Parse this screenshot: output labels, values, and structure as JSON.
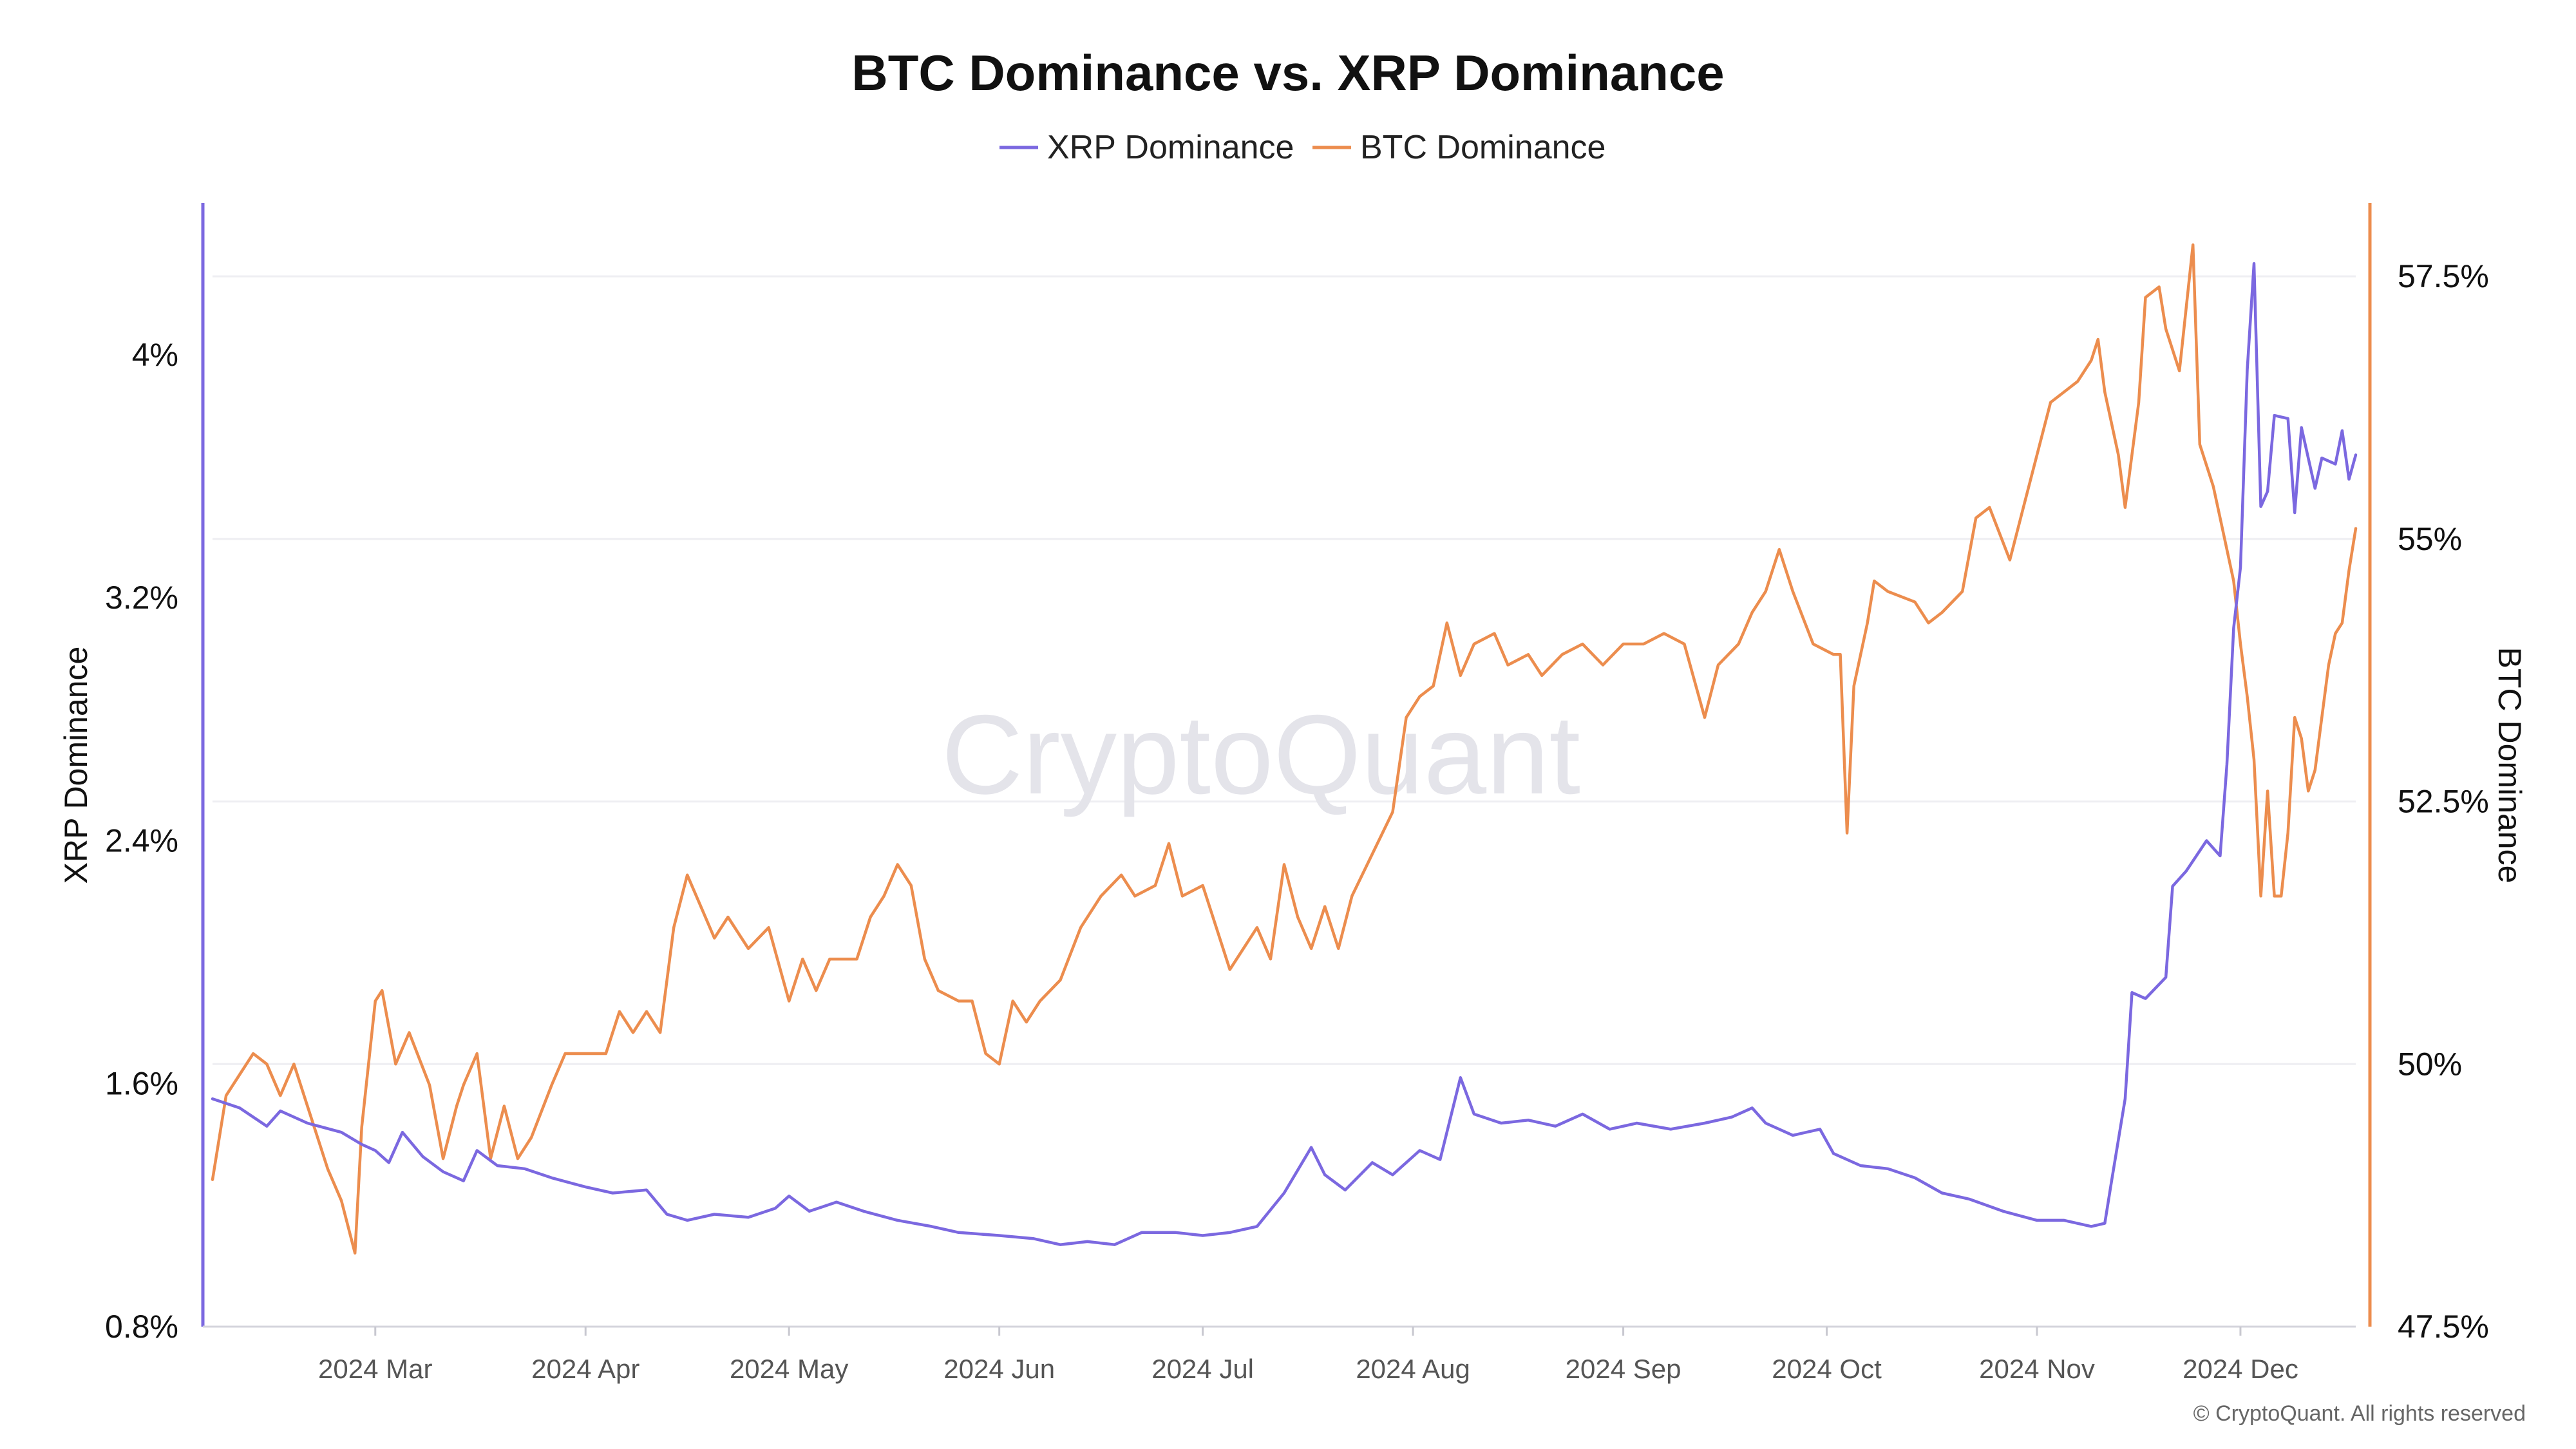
{
  "colors": {
    "xrp": "#7b68e0",
    "btc": "#ec8d4e",
    "grid": "#eeeef2",
    "x_axis": "#d4d4dc"
  },
  "watermark": "CryptoQuant",
  "copyright": "© CryptoQuant. All rights reserved",
  "chart_data": {
    "type": "line",
    "title": "BTC Dominance vs. XRP Dominance",
    "legend": [
      "XRP Dominance",
      "BTC Dominance"
    ],
    "legend_position": "top-center",
    "x_axis": {
      "start": "2024-02-06",
      "end": "2024-12-18",
      "ticks": [
        {
          "date": "2024-03-01",
          "label": "2024 Mar"
        },
        {
          "date": "2024-04-01",
          "label": "2024 Apr"
        },
        {
          "date": "2024-05-01",
          "label": "2024 May"
        },
        {
          "date": "2024-06-01",
          "label": "2024 Jun"
        },
        {
          "date": "2024-07-01",
          "label": "2024 Jul"
        },
        {
          "date": "2024-08-01",
          "label": "2024 Aug"
        },
        {
          "date": "2024-09-01",
          "label": "2024 Sep"
        },
        {
          "date": "2024-10-01",
          "label": "2024 Oct"
        },
        {
          "date": "2024-11-01",
          "label": "2024 Nov"
        },
        {
          "date": "2024-12-01",
          "label": "2024 Dec"
        }
      ]
    },
    "y_left": {
      "label": "XRP Dominance",
      "range": [
        0.8,
        4.5
      ],
      "ticks": [
        0.8,
        1.6,
        2.4,
        3.2,
        4.0
      ],
      "tick_labels": [
        "0.8%",
        "1.6%",
        "2.4%",
        "3.2%",
        "4%"
      ]
    },
    "y_right": {
      "label": "BTC Dominance",
      "range": [
        47.5,
        58.2
      ],
      "ticks": [
        47.5,
        50.0,
        52.5,
        55.0,
        57.5
      ],
      "tick_labels": [
        "47.5%",
        "50%",
        "52.5%",
        "55%",
        "57.5%"
      ]
    },
    "series": [
      {
        "name": "XRP Dominance",
        "axis": "left",
        "points": [
          [
            "2024-02-06",
            1.55
          ],
          [
            "2024-02-10",
            1.52
          ],
          [
            "2024-02-14",
            1.46
          ],
          [
            "2024-02-16",
            1.51
          ],
          [
            "2024-02-20",
            1.47
          ],
          [
            "2024-02-25",
            1.44
          ],
          [
            "2024-02-28",
            1.4
          ],
          [
            "2024-03-01",
            1.38
          ],
          [
            "2024-03-03",
            1.34
          ],
          [
            "2024-03-05",
            1.44
          ],
          [
            "2024-03-08",
            1.36
          ],
          [
            "2024-03-11",
            1.31
          ],
          [
            "2024-03-14",
            1.28
          ],
          [
            "2024-03-16",
            1.38
          ],
          [
            "2024-03-19",
            1.33
          ],
          [
            "2024-03-23",
            1.32
          ],
          [
            "2024-03-27",
            1.29
          ],
          [
            "2024-04-01",
            1.26
          ],
          [
            "2024-04-05",
            1.24
          ],
          [
            "2024-04-10",
            1.25
          ],
          [
            "2024-04-13",
            1.17
          ],
          [
            "2024-04-16",
            1.15
          ],
          [
            "2024-04-20",
            1.17
          ],
          [
            "2024-04-25",
            1.16
          ],
          [
            "2024-04-29",
            1.19
          ],
          [
            "2024-05-01",
            1.23
          ],
          [
            "2024-05-04",
            1.18
          ],
          [
            "2024-05-08",
            1.21
          ],
          [
            "2024-05-12",
            1.18
          ],
          [
            "2024-05-17",
            1.15
          ],
          [
            "2024-05-22",
            1.13
          ],
          [
            "2024-05-26",
            1.11
          ],
          [
            "2024-06-01",
            1.1
          ],
          [
            "2024-06-06",
            1.09
          ],
          [
            "2024-06-10",
            1.07
          ],
          [
            "2024-06-14",
            1.08
          ],
          [
            "2024-06-18",
            1.07
          ],
          [
            "2024-06-22",
            1.11
          ],
          [
            "2024-06-27",
            1.11
          ],
          [
            "2024-07-01",
            1.1
          ],
          [
            "2024-07-05",
            1.11
          ],
          [
            "2024-07-09",
            1.13
          ],
          [
            "2024-07-13",
            1.24
          ],
          [
            "2024-07-17",
            1.39
          ],
          [
            "2024-07-19",
            1.3
          ],
          [
            "2024-07-22",
            1.25
          ],
          [
            "2024-07-26",
            1.34
          ],
          [
            "2024-07-29",
            1.3
          ],
          [
            "2024-08-02",
            1.38
          ],
          [
            "2024-08-05",
            1.35
          ],
          [
            "2024-08-08",
            1.62
          ],
          [
            "2024-08-10",
            1.5
          ],
          [
            "2024-08-14",
            1.47
          ],
          [
            "2024-08-18",
            1.48
          ],
          [
            "2024-08-22",
            1.46
          ],
          [
            "2024-08-26",
            1.5
          ],
          [
            "2024-08-30",
            1.45
          ],
          [
            "2024-09-03",
            1.47
          ],
          [
            "2024-09-08",
            1.45
          ],
          [
            "2024-09-13",
            1.47
          ],
          [
            "2024-09-17",
            1.49
          ],
          [
            "2024-09-20",
            1.52
          ],
          [
            "2024-09-22",
            1.47
          ],
          [
            "2024-09-26",
            1.43
          ],
          [
            "2024-09-30",
            1.45
          ],
          [
            "2024-10-02",
            1.37
          ],
          [
            "2024-10-06",
            1.33
          ],
          [
            "2024-10-10",
            1.32
          ],
          [
            "2024-10-14",
            1.29
          ],
          [
            "2024-10-18",
            1.24
          ],
          [
            "2024-10-22",
            1.22
          ],
          [
            "2024-10-27",
            1.18
          ],
          [
            "2024-11-01",
            1.15
          ],
          [
            "2024-11-05",
            1.15
          ],
          [
            "2024-11-09",
            1.13
          ],
          [
            "2024-11-11",
            1.14
          ],
          [
            "2024-11-12",
            1.28
          ],
          [
            "2024-11-14",
            1.55
          ],
          [
            "2024-11-15",
            1.9
          ],
          [
            "2024-11-17",
            1.88
          ],
          [
            "2024-11-20",
            1.95
          ],
          [
            "2024-11-21",
            2.25
          ],
          [
            "2024-11-23",
            2.3
          ],
          [
            "2024-11-26",
            2.4
          ],
          [
            "2024-11-28",
            2.35
          ],
          [
            "2024-11-29",
            2.65
          ],
          [
            "2024-11-30",
            3.1
          ],
          [
            "2024-12-01",
            3.3
          ],
          [
            "2024-12-02",
            3.95
          ],
          [
            "2024-12-03",
            4.3
          ],
          [
            "2024-12-04",
            3.5
          ],
          [
            "2024-12-05",
            3.55
          ],
          [
            "2024-12-06",
            3.8
          ],
          [
            "2024-12-08",
            3.79
          ],
          [
            "2024-12-09",
            3.48
          ],
          [
            "2024-12-10",
            3.76
          ],
          [
            "2024-12-12",
            3.56
          ],
          [
            "2024-12-13",
            3.66
          ],
          [
            "2024-12-15",
            3.64
          ],
          [
            "2024-12-16",
            3.75
          ],
          [
            "2024-12-17",
            3.59
          ],
          [
            "2024-12-18",
            3.67
          ]
        ]
      },
      {
        "name": "BTC Dominance",
        "axis": "right",
        "points": [
          [
            "2024-02-06",
            48.9
          ],
          [
            "2024-02-08",
            49.7
          ],
          [
            "2024-02-10",
            49.9
          ],
          [
            "2024-02-12",
            50.1
          ],
          [
            "2024-02-14",
            50.0
          ],
          [
            "2024-02-16",
            49.7
          ],
          [
            "2024-02-18",
            50.0
          ],
          [
            "2024-02-20",
            49.6
          ],
          [
            "2024-02-23",
            49.0
          ],
          [
            "2024-02-25",
            48.7
          ],
          [
            "2024-02-27",
            48.2
          ],
          [
            "2024-02-28",
            49.4
          ],
          [
            "2024-03-01",
            50.6
          ],
          [
            "2024-03-02",
            50.7
          ],
          [
            "2024-03-04",
            50.0
          ],
          [
            "2024-03-06",
            50.3
          ],
          [
            "2024-03-09",
            49.8
          ],
          [
            "2024-03-11",
            49.1
          ],
          [
            "2024-03-13",
            49.6
          ],
          [
            "2024-03-14",
            49.8
          ],
          [
            "2024-03-16",
            50.1
          ],
          [
            "2024-03-18",
            49.1
          ],
          [
            "2024-03-20",
            49.6
          ],
          [
            "2024-03-22",
            49.1
          ],
          [
            "2024-03-24",
            49.3
          ],
          [
            "2024-03-27",
            49.8
          ],
          [
            "2024-03-29",
            50.1
          ],
          [
            "2024-04-01",
            50.1
          ],
          [
            "2024-04-04",
            50.1
          ],
          [
            "2024-04-06",
            50.5
          ],
          [
            "2024-04-08",
            50.3
          ],
          [
            "2024-04-10",
            50.5
          ],
          [
            "2024-04-12",
            50.3
          ],
          [
            "2024-04-14",
            51.3
          ],
          [
            "2024-04-16",
            51.8
          ],
          [
            "2024-04-18",
            51.5
          ],
          [
            "2024-04-20",
            51.2
          ],
          [
            "2024-04-22",
            51.4
          ],
          [
            "2024-04-25",
            51.1
          ],
          [
            "2024-04-28",
            51.3
          ],
          [
            "2024-05-01",
            50.6
          ],
          [
            "2024-05-03",
            51.0
          ],
          [
            "2024-05-05",
            50.7
          ],
          [
            "2024-05-07",
            51.0
          ],
          [
            "2024-05-09",
            51.0
          ],
          [
            "2024-05-11",
            51.0
          ],
          [
            "2024-05-13",
            51.4
          ],
          [
            "2024-05-15",
            51.6
          ],
          [
            "2024-05-17",
            51.9
          ],
          [
            "2024-05-19",
            51.7
          ],
          [
            "2024-05-21",
            51.0
          ],
          [
            "2024-05-23",
            50.7
          ],
          [
            "2024-05-26",
            50.6
          ],
          [
            "2024-05-28",
            50.6
          ],
          [
            "2024-05-30",
            50.1
          ],
          [
            "2024-06-01",
            50.0
          ],
          [
            "2024-06-03",
            50.6
          ],
          [
            "2024-06-05",
            50.4
          ],
          [
            "2024-06-07",
            50.6
          ],
          [
            "2024-06-10",
            50.8
          ],
          [
            "2024-06-13",
            51.3
          ],
          [
            "2024-06-16",
            51.6
          ],
          [
            "2024-06-19",
            51.8
          ],
          [
            "2024-06-21",
            51.6
          ],
          [
            "2024-06-24",
            51.7
          ],
          [
            "2024-06-26",
            52.1
          ],
          [
            "2024-06-28",
            51.6
          ],
          [
            "2024-07-01",
            51.7
          ],
          [
            "2024-07-03",
            51.3
          ],
          [
            "2024-07-05",
            50.9
          ],
          [
            "2024-07-07",
            51.1
          ],
          [
            "2024-07-09",
            51.3
          ],
          [
            "2024-07-11",
            51.0
          ],
          [
            "2024-07-13",
            51.9
          ],
          [
            "2024-07-15",
            51.4
          ],
          [
            "2024-07-17",
            51.1
          ],
          [
            "2024-07-19",
            51.5
          ],
          [
            "2024-07-21",
            51.1
          ],
          [
            "2024-07-23",
            51.6
          ],
          [
            "2024-07-26",
            52.0
          ],
          [
            "2024-07-29",
            52.4
          ],
          [
            "2024-07-31",
            53.3
          ],
          [
            "2024-08-02",
            53.5
          ],
          [
            "2024-08-04",
            53.6
          ],
          [
            "2024-08-06",
            54.2
          ],
          [
            "2024-08-08",
            53.7
          ],
          [
            "2024-08-10",
            54.0
          ],
          [
            "2024-08-13",
            54.1
          ],
          [
            "2024-08-15",
            53.8
          ],
          [
            "2024-08-18",
            53.9
          ],
          [
            "2024-08-20",
            53.7
          ],
          [
            "2024-08-23",
            53.9
          ],
          [
            "2024-08-26",
            54.0
          ],
          [
            "2024-08-29",
            53.8
          ],
          [
            "2024-09-01",
            54.0
          ],
          [
            "2024-09-04",
            54.0
          ],
          [
            "2024-09-07",
            54.1
          ],
          [
            "2024-09-10",
            54.0
          ],
          [
            "2024-09-13",
            53.3
          ],
          [
            "2024-09-15",
            53.8
          ],
          [
            "2024-09-18",
            54.0
          ],
          [
            "2024-09-20",
            54.3
          ],
          [
            "2024-09-22",
            54.5
          ],
          [
            "2024-09-24",
            54.9
          ],
          [
            "2024-09-26",
            54.5
          ],
          [
            "2024-09-29",
            54.0
          ],
          [
            "2024-10-02",
            53.9
          ],
          [
            "2024-10-03",
            53.9
          ],
          [
            "2024-10-04",
            52.2
          ],
          [
            "2024-10-05",
            53.6
          ],
          [
            "2024-10-07",
            54.2
          ],
          [
            "2024-10-08",
            54.6
          ],
          [
            "2024-10-10",
            54.5
          ],
          [
            "2024-10-14",
            54.4
          ],
          [
            "2024-10-16",
            54.2
          ],
          [
            "2024-10-18",
            54.3
          ],
          [
            "2024-10-21",
            54.5
          ],
          [
            "2024-10-23",
            55.2
          ],
          [
            "2024-10-25",
            55.3
          ],
          [
            "2024-10-28",
            54.8
          ],
          [
            "2024-10-30",
            55.3
          ],
          [
            "2024-11-01",
            55.8
          ],
          [
            "2024-11-03",
            56.3
          ],
          [
            "2024-11-05",
            56.4
          ],
          [
            "2024-11-07",
            56.5
          ],
          [
            "2024-11-09",
            56.7
          ],
          [
            "2024-11-10",
            56.9
          ],
          [
            "2024-11-11",
            56.4
          ],
          [
            "2024-11-13",
            55.8
          ],
          [
            "2024-11-14",
            55.3
          ],
          [
            "2024-11-16",
            56.3
          ],
          [
            "2024-11-17",
            57.3
          ],
          [
            "2024-11-19",
            57.4
          ],
          [
            "2024-11-20",
            57.0
          ],
          [
            "2024-11-22",
            56.6
          ],
          [
            "2024-11-24",
            57.8
          ],
          [
            "2024-11-25",
            55.9
          ],
          [
            "2024-11-27",
            55.5
          ],
          [
            "2024-11-28",
            55.2
          ],
          [
            "2024-11-30",
            54.6
          ],
          [
            "2024-12-01",
            54.0
          ],
          [
            "2024-12-02",
            53.5
          ],
          [
            "2024-12-03",
            52.9
          ],
          [
            "2024-12-04",
            51.6
          ],
          [
            "2024-12-05",
            52.6
          ],
          [
            "2024-12-06",
            51.6
          ],
          [
            "2024-12-07",
            51.6
          ],
          [
            "2024-12-08",
            52.2
          ],
          [
            "2024-12-09",
            53.3
          ],
          [
            "2024-12-10",
            53.1
          ],
          [
            "2024-12-11",
            52.6
          ],
          [
            "2024-12-12",
            52.8
          ],
          [
            "2024-12-13",
            53.3
          ],
          [
            "2024-12-14",
            53.8
          ],
          [
            "2024-12-15",
            54.1
          ],
          [
            "2024-12-16",
            54.2
          ],
          [
            "2024-12-17",
            54.7
          ],
          [
            "2024-12-18",
            55.1
          ]
        ]
      }
    ]
  }
}
